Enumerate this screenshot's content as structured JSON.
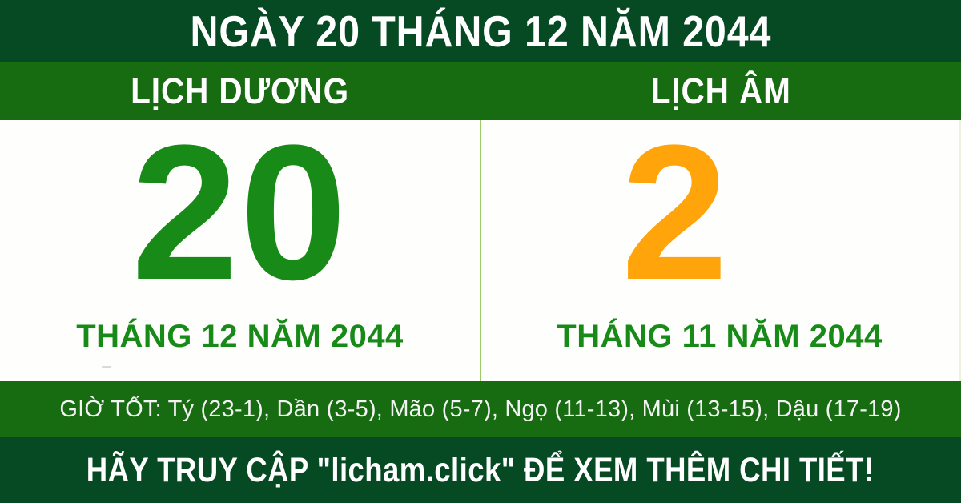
{
  "header": {
    "title": "NGÀY 20 THÁNG 12 NĂM 2044"
  },
  "columns": {
    "solar": {
      "label": "LỊCH DƯƠNG",
      "day": "20",
      "month_line": "THÁNG 12 NĂM 2044"
    },
    "lunar": {
      "label": "LỊCH ÂM",
      "day": "2",
      "month_line": "THÁNG 11 NĂM 2044"
    }
  },
  "good_hours": {
    "text": "GIỜ TỐT: Tý (23-1), Dần (3-5), Mão (5-7), Ngọ (11-13), Mùi (13-15), Dậu (17-19)"
  },
  "footer": {
    "text": "HÃY TRUY CẬP \"licham.click\" ĐỂ XEM THÊM CHI TIẾT!"
  },
  "colors": {
    "banner_dark_green": "#064A23",
    "bar_medium_green": "#176B10",
    "solar_day_green": "#178A17",
    "lunar_day_orange": "#FFA40B",
    "divider_light_green": "#9CCB6A",
    "text_white": "#FFFFFF"
  }
}
